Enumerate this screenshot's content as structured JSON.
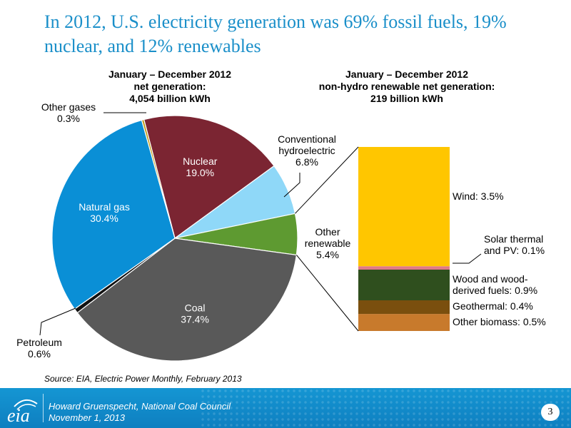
{
  "title": "In 2012, U.S. electricity generation was 69% fossil fuels, 19% nuclear, and 12% renewables",
  "left_subtitle": [
    "January – December 2012",
    "net generation:",
    "4,054 billion kWh"
  ],
  "right_subtitle": [
    "January – December 2012",
    "non-hydro renewable net generation:",
    "219 billion kWh"
  ],
  "source": "Source:  EIA, Electric Power Monthly, February 2013",
  "footer": {
    "logo_text": "eia",
    "line1": "Howard Gruenspecht, National Coal Council",
    "line2": "November 1, 2013"
  },
  "page_number": "3",
  "chart_data": [
    {
      "type": "pie",
      "slices": [
        {
          "name": "Nuclear",
          "value": 19.0,
          "label": "19.0%",
          "color": "#7b2532"
        },
        {
          "name": "Conventional hydroelectric",
          "value": 6.8,
          "label": "6.8%",
          "color": "#8fd8f8"
        },
        {
          "name": "Other renewable",
          "value": 5.4,
          "label": "5.4%",
          "color": "#5e9a31"
        },
        {
          "name": "Coal",
          "value": 37.4,
          "label": "37.4%",
          "color": "#595959"
        },
        {
          "name": "Petroleum",
          "value": 0.6,
          "label": "0.6%",
          "color": "#111111"
        },
        {
          "name": "Natural gas",
          "value": 30.4,
          "label": "30.4%",
          "color": "#0a8fd6"
        },
        {
          "name": "Other gases",
          "value": 0.3,
          "label": "0.3%",
          "color": "#c09a18"
        }
      ]
    },
    {
      "type": "bar",
      "stacked": true,
      "segments": [
        {
          "name": "Other biomass",
          "value": 0.5,
          "label": "Other biomass:  0.5%",
          "color": "#c87a2c"
        },
        {
          "name": "Geothermal",
          "value": 0.4,
          "label": "Geothermal:  0.4%",
          "color": "#7a4f0e"
        },
        {
          "name": "Wood and wood-derived fuels",
          "value": 0.9,
          "label": [
            "Wood and wood-",
            "derived fuels:  0.9%"
          ],
          "color": "#2f4f1e"
        },
        {
          "name": "Solar thermal and PV",
          "value": 0.1,
          "label": [
            "Solar thermal",
            "and PV:  0.1%"
          ],
          "color": "#e07a86"
        },
        {
          "name": "Wind",
          "value": 3.5,
          "label": "Wind:  3.5%",
          "color": "#ffc600"
        }
      ]
    }
  ]
}
